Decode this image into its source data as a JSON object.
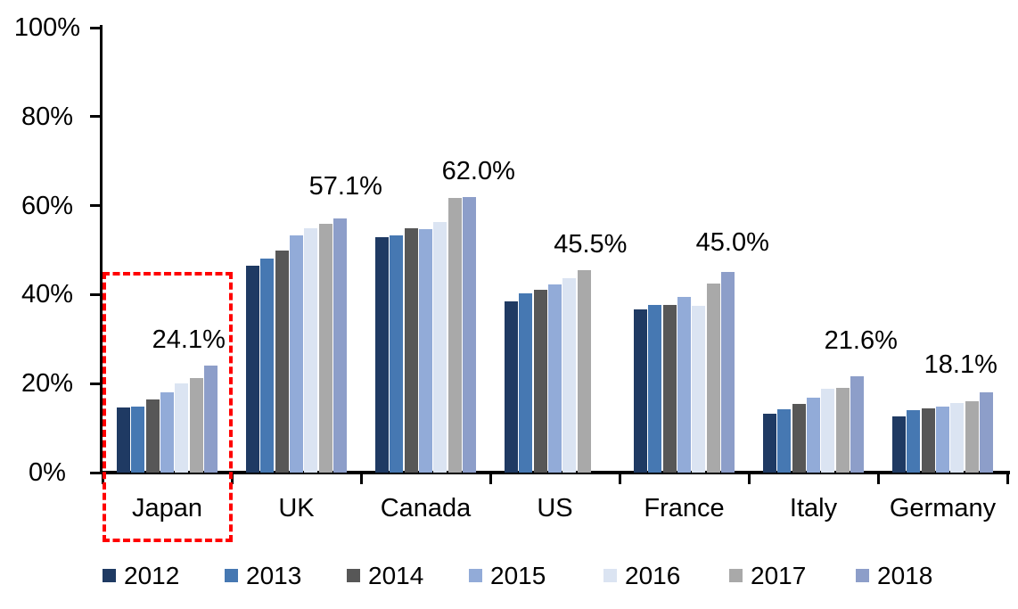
{
  "chart_data": {
    "type": "bar",
    "title": "",
    "categories": [
      "Japan",
      "UK",
      "Canada",
      "US",
      "France",
      "Italy",
      "Germany"
    ],
    "series": [
      {
        "name": "2012",
        "color": "#1F3A63",
        "values": [
          14.7,
          46.5,
          53.0,
          38.4,
          36.6,
          13.3,
          12.6
        ]
      },
      {
        "name": "2013",
        "color": "#4678B2",
        "values": [
          14.9,
          48.0,
          53.4,
          40.2,
          37.7,
          14.2,
          14.1
        ]
      },
      {
        "name": "2014",
        "color": "#575757",
        "values": [
          16.5,
          50.0,
          55.0,
          41.0,
          37.7,
          15.4,
          14.4
        ]
      },
      {
        "name": "2015",
        "color": "#92ABD8",
        "values": [
          18.0,
          53.3,
          54.8,
          42.3,
          39.4,
          16.9,
          14.9
        ]
      },
      {
        "name": "2016",
        "color": "#DBE4F2",
        "values": [
          20.1,
          55.0,
          56.3,
          43.6,
          37.4,
          18.9,
          15.6
        ]
      },
      {
        "name": "2017",
        "color": "#A9A9A9",
        "values": [
          21.2,
          56.0,
          61.7,
          45.5,
          42.4,
          19.1,
          16.0
        ]
      },
      {
        "name": "2018",
        "color": "#8D9EC9",
        "values": [
          24.1,
          57.1,
          62.0,
          null,
          45.0,
          21.6,
          18.1
        ]
      }
    ],
    "data_labels": [
      {
        "category": "Japan",
        "text": "24.1%",
        "dx": -25,
        "gap": 15
      },
      {
        "category": "UK",
        "text": "57.1%",
        "dx": 6,
        "gap": 22
      },
      {
        "category": "Canada",
        "text": "62.0%",
        "dx": 10,
        "gap": 15
      },
      {
        "category": "US",
        "text": "45.5%",
        "dx": 7,
        "gap": 15
      },
      {
        "category": "France",
        "text": "45.0%",
        "dx": 5,
        "gap": 19
      },
      {
        "category": "Italy",
        "text": "21.6%",
        "dx": 4,
        "gap": 26
      },
      {
        "category": "Germany",
        "text": "18.1%",
        "dx": -29,
        "gap": 17
      }
    ],
    "y_axis": {
      "min": 0,
      "max": 100,
      "step": 20,
      "tick_labels": [
        "0%",
        "20%",
        "40%",
        "60%",
        "80%",
        "100%"
      ],
      "grid": false
    },
    "x_axis": {
      "labels": [
        "Japan",
        "UK",
        "Canada",
        "US",
        "France",
        "Italy",
        "Germany"
      ]
    },
    "legend": {
      "position": "bottom",
      "entries": [
        "2012",
        "2013",
        "2014",
        "2015",
        "2016",
        "2017",
        "2018"
      ]
    },
    "annotation": {
      "type": "dashed-rectangle",
      "target": "Japan",
      "color": "#FF0000"
    }
  }
}
